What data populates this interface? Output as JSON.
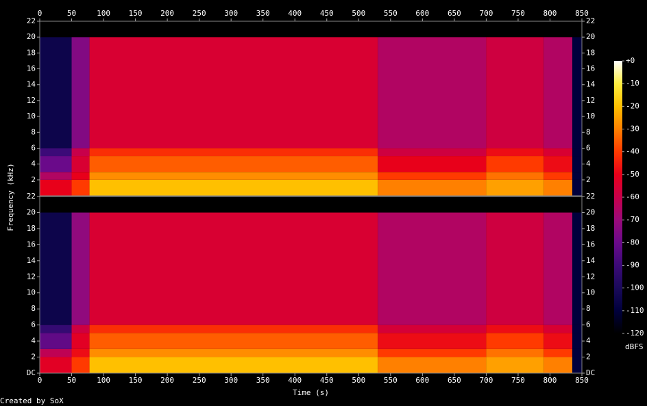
{
  "chart_data": [
    {
      "type": "heatmap",
      "ylabel": "Frequency (kHz)",
      "xlim": [
        0,
        850
      ],
      "xticks": [
        0,
        50,
        100,
        150,
        200,
        250,
        300,
        350,
        400,
        450,
        500,
        550,
        600,
        650,
        700,
        750,
        800,
        850
      ],
      "ylim": [
        0,
        22
      ],
      "yticks": [
        2,
        4,
        6,
        8,
        10,
        12,
        14,
        16,
        18,
        20,
        22
      ],
      "xbins": [
        0,
        50,
        78,
        530,
        700,
        790,
        835,
        850
      ],
      "ybins": [
        0,
        2,
        3,
        5,
        6,
        20,
        22
      ],
      "values": [
        [
          -50,
          -40,
          -20,
          -30,
          -25,
          -30,
          -110
        ],
        [
          -65,
          -50,
          -28,
          -40,
          -32,
          -40,
          -110
        ],
        [
          -80,
          -55,
          -35,
          -50,
          -40,
          -48,
          -110
        ],
        [
          -90,
          -60,
          -42,
          -58,
          -48,
          -55,
          -110
        ],
        [
          -105,
          -75,
          -55,
          -65,
          -58,
          -65,
          -110
        ],
        [
          -120,
          -120,
          -120,
          -120,
          -120,
          -120,
          -120
        ]
      ]
    },
    {
      "type": "heatmap",
      "xlabel": "Time (s)",
      "xlim": [
        0,
        850
      ],
      "xticks": [
        0,
        50,
        100,
        150,
        200,
        250,
        300,
        350,
        400,
        450,
        500,
        550,
        600,
        650,
        700,
        750,
        800,
        850
      ],
      "ylim": [
        0,
        22
      ],
      "yticks": [
        {
          "value": 0,
          "label": "DC"
        },
        2,
        4,
        6,
        8,
        10,
        12,
        14,
        16,
        18,
        20,
        22
      ],
      "xbins": [
        0,
        50,
        78,
        530,
        700,
        790,
        835,
        850
      ],
      "ybins": [
        0,
        2,
        3,
        5,
        6,
        20,
        22
      ],
      "values": [
        [
          -52,
          -40,
          -20,
          -30,
          -25,
          -30,
          -110
        ],
        [
          -62,
          -48,
          -28,
          -40,
          -32,
          -40,
          -110
        ],
        [
          -82,
          -52,
          -35,
          -48,
          -40,
          -48,
          -110
        ],
        [
          -92,
          -58,
          -42,
          -56,
          -48,
          -55,
          -110
        ],
        [
          -105,
          -72,
          -55,
          -65,
          -58,
          -65,
          -110
        ],
        [
          -120,
          -120,
          -120,
          -120,
          -120,
          -120,
          -120
        ]
      ]
    }
  ],
  "colorbar": {
    "label": "dBFS",
    "lim": [
      -120,
      0
    ],
    "ticks": [
      {
        "value": 0,
        "label": "+0"
      },
      -10,
      -20,
      -30,
      -40,
      -50,
      -60,
      -70,
      -80,
      -90,
      -100,
      -110,
      -120
    ],
    "colors": [
      "#000000",
      "#00003c",
      "#1a0a5a",
      "#3c0a78",
      "#6a0a8a",
      "#9a0a7a",
      "#c8004a",
      "#e8001a",
      "#ff3a00",
      "#ff8000",
      "#ffc000",
      "#ffee40",
      "#ffffff"
    ]
  },
  "footer": "Created by SoX"
}
